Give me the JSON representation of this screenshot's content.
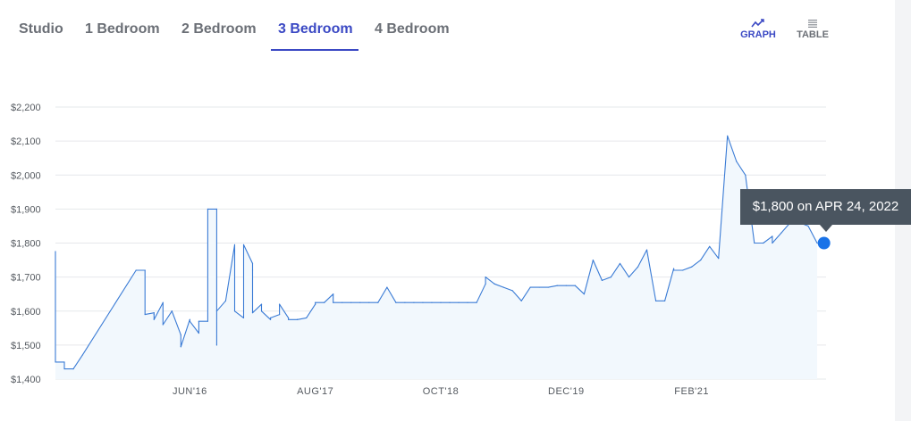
{
  "tabs": [
    {
      "label": "Studio",
      "active": false
    },
    {
      "label": "1 Bedroom",
      "active": false
    },
    {
      "label": "2 Bedroom",
      "active": false
    },
    {
      "label": "3 Bedroom",
      "active": true
    },
    {
      "label": "4 Bedroom",
      "active": false
    }
  ],
  "view_toggle": {
    "graph_label": "GRAPH",
    "graph_icon": "line-chart-icon",
    "table_label": "TABLE",
    "table_icon": "list-icon",
    "active": "graph"
  },
  "tooltip": {
    "text": "$1,800 on APR 24, 2022"
  },
  "colors": {
    "accent": "#3b49c4",
    "line": "#3a7bd5",
    "area": "#f2f8fd",
    "point": "#1a73e8",
    "tooltip_bg": "#4a5560"
  },
  "chart_data": {
    "type": "area",
    "title": "",
    "xlabel": "",
    "ylabel": "",
    "ylim": [
      1400,
      2200
    ],
    "yticks": [
      1400,
      1500,
      1600,
      1700,
      1800,
      1900,
      2000,
      2100,
      2200
    ],
    "ytick_labels": [
      "$1,400",
      "$1,500",
      "$1,600",
      "$1,700",
      "$1,800",
      "$1,900",
      "$2,000",
      "$2,100",
      "$2,200"
    ],
    "xlim": [
      "2015-03",
      "2022-05"
    ],
    "xticks": [
      "2016-06",
      "2017-08",
      "2018-10",
      "2019-12",
      "2021-02"
    ],
    "xtick_labels": [
      "JUN'16",
      "AUG'17",
      "OCT'18",
      "DEC'19",
      "FEB'21"
    ],
    "grid": true,
    "series": [
      {
        "x": [
          "2015-03",
          "2015-03",
          "2015-04",
          "2015-04",
          "2015-05",
          "2015-05",
          "2015-06",
          "2015-12",
          "2016-01",
          "2016-01",
          "2016-02",
          "2016-02",
          "2016-02",
          "2016-03",
          "2016-03",
          "2016-04",
          "2016-04",
          "2016-05",
          "2016-05",
          "2016-06",
          "2016-06",
          "2016-07",
          "2016-07",
          "2016-08",
          "2016-08",
          "2016-09",
          "2016-09",
          "2016-09",
          "2016-10",
          "2016-11",
          "2016-11",
          "2016-12",
          "2016-12",
          "2017-01",
          "2017-01",
          "2017-01",
          "2017-02",
          "2017-02",
          "2017-03",
          "2017-03",
          "2017-04",
          "2017-04",
          "2017-05",
          "2017-05",
          "2017-06",
          "2017-06",
          "2017-07",
          "2017-08",
          "2017-08",
          "2017-09",
          "2017-10",
          "2017-10",
          "2017-11",
          "2017-12",
          "2018-01",
          "2018-02",
          "2018-03",
          "2018-04",
          "2018-05",
          "2018-06",
          "2018-07",
          "2018-08",
          "2018-09",
          "2018-10",
          "2018-11",
          "2018-12",
          "2019-01",
          "2019-02",
          "2019-03",
          "2019-03",
          "2019-04",
          "2019-05",
          "2019-06",
          "2019-07",
          "2019-08",
          "2019-09",
          "2019-10",
          "2019-11",
          "2019-12",
          "2020-01",
          "2020-02",
          "2020-03",
          "2020-04",
          "2020-05",
          "2020-06",
          "2020-07",
          "2020-08",
          "2020-09",
          "2020-10",
          "2020-11",
          "2020-12",
          "2020-12",
          "2021-01",
          "2021-02",
          "2021-03",
          "2021-04",
          "2021-05",
          "2021-06",
          "2021-07",
          "2021-08",
          "2021-09",
          "2021-10",
          "2021-10",
          "2021-11",
          "2021-11",
          "2021-12",
          "2022-01",
          "2022-02",
          "2022-03",
          "2022-04"
        ],
        "values": [
          1775,
          1450,
          1450,
          1430,
          1430,
          1430,
          1470,
          1720,
          1720,
          1590,
          1595,
          1590,
          1575,
          1625,
          1560,
          1600,
          1600,
          1530,
          1495,
          1575,
          1570,
          1535,
          1570,
          1570,
          1900,
          1900,
          1500,
          1600,
          1630,
          1795,
          1600,
          1580,
          1795,
          1740,
          1720,
          1595,
          1620,
          1600,
          1575,
          1580,
          1590,
          1620,
          1580,
          1575,
          1575,
          1575,
          1580,
          1620,
          1625,
          1625,
          1650,
          1625,
          1625,
          1625,
          1625,
          1625,
          1625,
          1670,
          1625,
          1625,
          1625,
          1625,
          1625,
          1625,
          1625,
          1625,
          1625,
          1625,
          1680,
          1700,
          1680,
          1670,
          1660,
          1630,
          1670,
          1670,
          1670,
          1675,
          1675,
          1675,
          1650,
          1750,
          1690,
          1700,
          1740,
          1700,
          1730,
          1780,
          1630,
          1630,
          1725,
          1720,
          1720,
          1730,
          1750,
          1790,
          1755,
          2115,
          2040,
          2000,
          1800,
          1800,
          1800,
          1820,
          1800,
          1830,
          1860,
          1860,
          1850,
          1800
        ]
      }
    ],
    "highlight": {
      "x": "2022-04-24",
      "y": 1800,
      "label": "$1,800 on APR 24, 2022"
    }
  }
}
